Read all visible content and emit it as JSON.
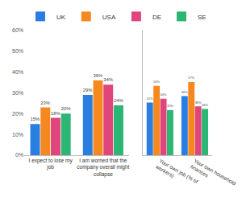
{
  "chart_data": [
    {
      "type": "bar",
      "categories": [
        "I expect to lose my job",
        "I am worried that the company overall might collapse"
      ],
      "series": [
        {
          "name": "UK",
          "color": "#2a7de1",
          "values": [
            15,
            29
          ],
          "value_labels": [
            "15%",
            "29%"
          ]
        },
        {
          "name": "USA",
          "color": "#f5891f",
          "values": [
            23,
            36
          ],
          "value_labels": [
            "23%",
            "36%"
          ]
        },
        {
          "name": "DE",
          "color": "#e0467c",
          "values": [
            18,
            34
          ],
          "value_labels": [
            "18%",
            "34%"
          ]
        },
        {
          "name": "SE",
          "color": "#2bb673",
          "values": [
            20,
            24
          ],
          "value_labels": [
            "20%",
            "24%"
          ]
        }
      ],
      "ylim": [
        0,
        60
      ],
      "yticks": [
        {
          "value": 0,
          "label": "0%"
        },
        {
          "value": 10,
          "label": "10%"
        },
        {
          "value": 20,
          "label": "20%"
        },
        {
          "value": 30,
          "label": "30%"
        },
        {
          "value": 40,
          "label": "40%"
        },
        {
          "value": 50,
          "label": "50%"
        },
        {
          "value": 60,
          "label": "60%"
        }
      ],
      "data_labels": true,
      "grid": false,
      "legend": "top left"
    },
    {
      "type": "bar",
      "categories": [
        "Your own job (% of workers)",
        "Your own household finances"
      ],
      "series": [
        {
          "name": "UK",
          "color": "#2a7de1",
          "values": [
            41,
            46
          ],
          "value_labels": [
            "41%",
            "46%"
          ]
        },
        {
          "name": "USA",
          "color": "#f5891f",
          "values": [
            54,
            57
          ],
          "value_labels": [
            "54%",
            "57%"
          ]
        },
        {
          "name": "DE",
          "color": "#e0467c",
          "values": [
            44,
            38
          ],
          "value_labels": [
            "44%",
            "38%"
          ]
        },
        {
          "name": "SE",
          "color": "#2bb673",
          "values": [
            35,
            36
          ],
          "value_labels": [
            "35%",
            "36%"
          ]
        }
      ],
      "ylim": [
        0,
        97
      ],
      "data_labels": true,
      "grid": false,
      "tick_labels": "x"
    }
  ]
}
